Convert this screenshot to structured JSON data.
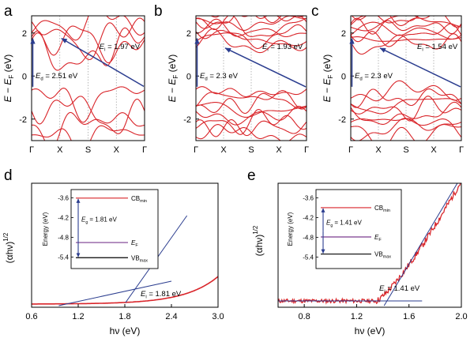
{
  "colors": {
    "bands": "#d9252a",
    "arrow": "#2b3d8f",
    "frame": "#000000",
    "vline": "#9a9a9a",
    "level_fermi": "#7a3b8f"
  },
  "chart_data": [
    {
      "panel": "a",
      "type": "line",
      "ylabel": "E − E_F (eV)",
      "ylim": [
        -3,
        2.8
      ],
      "yticks": [
        "-2",
        "0",
        "2"
      ],
      "ytick_values": [
        -2,
        0,
        2
      ],
      "xticks": [
        "Γ",
        "X",
        "S",
        "X",
        "Γ"
      ],
      "annotations": [
        {
          "sym": "E",
          "sub": "i",
          "value": "= 1.97 eV"
        },
        {
          "sym": "E",
          "sub": "d",
          "value": "= 2.51 eV"
        }
      ],
      "vbm_y": -0.48,
      "cbm_y": 1.75
    },
    {
      "panel": "b",
      "type": "line",
      "ylabel": "E − E_F (eV)",
      "ylim": [
        -3,
        2.8
      ],
      "yticks": [
        "-2",
        "0",
        "2"
      ],
      "ytick_values": [
        -2,
        0,
        2
      ],
      "xticks": [
        "Γ",
        "X",
        "S",
        "X",
        "Γ"
      ],
      "annotations": [
        {
          "sym": "E",
          "sub": "i",
          "value": "= 1.93 eV"
        },
        {
          "sym": "E",
          "sub": "d",
          "value": "= 2.3 eV"
        }
      ],
      "vbm_y": -0.5,
      "cbm_y": 1.3
    },
    {
      "panel": "c",
      "type": "line",
      "ylabel": "E − E_F (eV)",
      "ylim": [
        -3,
        2.8
      ],
      "yticks": [
        "-2",
        "0",
        "2"
      ],
      "ytick_values": [
        -2,
        0,
        2
      ],
      "xticks": [
        "Γ",
        "X",
        "S",
        "X",
        "Γ"
      ],
      "annotations": [
        {
          "sym": "E",
          "sub": "i",
          "value": "= 1.54 eV"
        },
        {
          "sym": "E",
          "sub": "d",
          "value": "= 2.3 eV"
        }
      ],
      "vbm_y": -0.5,
      "cbm_y": 1.3
    },
    {
      "panel": "d",
      "type": "line",
      "xlabel": "hν (eV)",
      "ylabel": "(αhν)^1/2",
      "xlim": [
        0.6,
        3.0
      ],
      "xticks": [
        "0.6",
        "1.2",
        "1.8",
        "2.4",
        "3.0"
      ],
      "xtick_values": [
        0.6,
        1.2,
        1.8,
        2.4,
        3.0
      ],
      "fit_intercept_x": 1.81,
      "annotation": {
        "sym": "E",
        "sub": "i",
        "value": "= 1.81 eV"
      },
      "inset": {
        "ylabel": "Energy (eV)",
        "ylim": [
          -5.75,
          -3.35
        ],
        "yticks": [
          "-3.6",
          "-4.2",
          "-4.8",
          "-5.4"
        ],
        "ytick_values": [
          -3.6,
          -4.2,
          -4.8,
          -5.4
        ],
        "levels": [
          {
            "name": "CB",
            "sub": "min",
            "energy": -3.61
          },
          {
            "name": "E",
            "sub": "F",
            "energy": -4.96
          },
          {
            "name": "VB",
            "sub": "max",
            "energy": -5.42
          }
        ],
        "gap_label": {
          "sym": "E",
          "sub": "g",
          "value": "= 1.81 eV"
        }
      }
    },
    {
      "panel": "e",
      "type": "line",
      "xlabel": "hν (eV)",
      "ylabel": "(αhν)^1/2",
      "xlim": [
        0.6,
        2.0
      ],
      "xticks": [
        "0.8",
        "1.2",
        "1.6",
        "2.0"
      ],
      "xtick_values": [
        0.8,
        1.2,
        1.6,
        2.0
      ],
      "fit_intercept_x": 1.41,
      "annotation": {
        "sym": "E",
        "sub": "i",
        "value": "= 1.41 eV"
      },
      "inset": {
        "ylabel": "Energy (eV)",
        "ylim": [
          -5.75,
          -3.35
        ],
        "yticks": [
          "-3.6",
          "-4.2",
          "-4.8",
          "-5.4"
        ],
        "ytick_values": [
          -3.6,
          -4.2,
          -4.8,
          -5.4
        ],
        "levels": [
          {
            "name": "CB",
            "sub": "min",
            "energy": -3.9
          },
          {
            "name": "E",
            "sub": "F",
            "energy": -4.79
          },
          {
            "name": "VB",
            "sub": "max",
            "energy": -5.31
          }
        ],
        "gap_label": {
          "sym": "E",
          "sub": "g",
          "value": "= 1.41 eV"
        }
      }
    }
  ]
}
